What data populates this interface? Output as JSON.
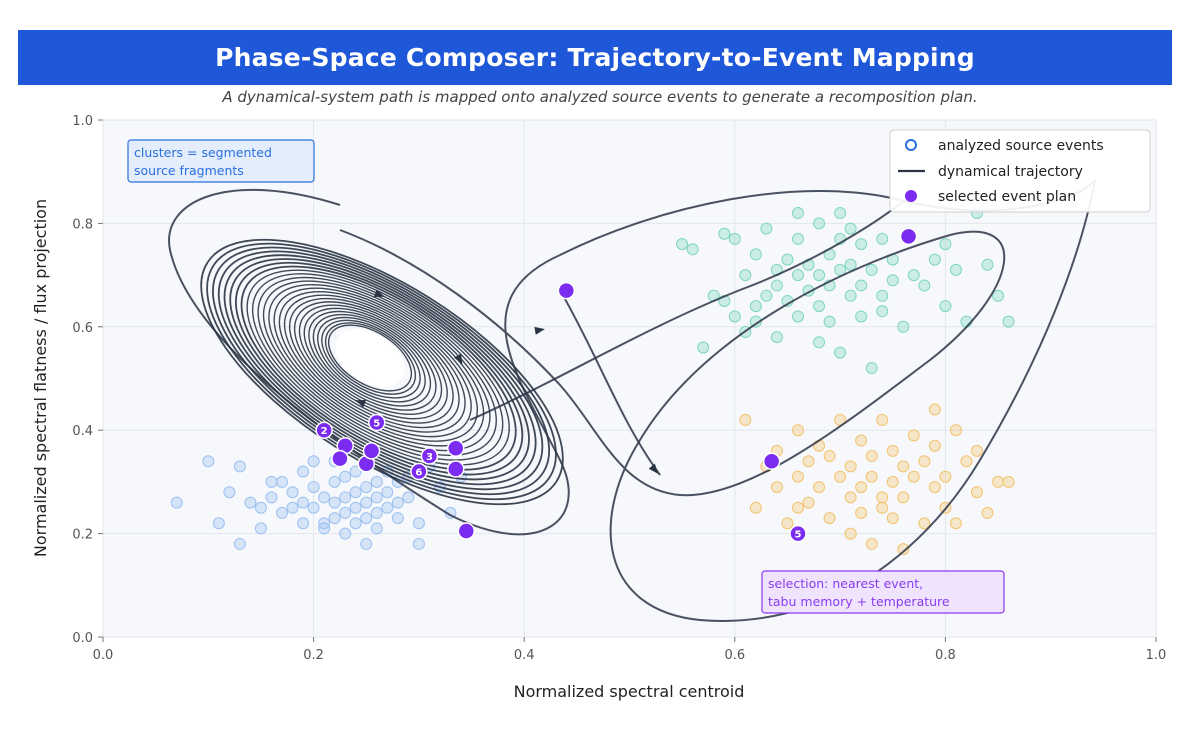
{
  "header": {
    "title": "Phase-Space Composer: Trajectory-to-Event Mapping",
    "subtitle": "A dynamical-system path is mapped onto analyzed source events to generate a recomposition plan."
  },
  "chart_data": {
    "type": "scatter",
    "xlabel": "Normalized spectral centroid",
    "ylabel": "Normalized spectral flatness / flux projection",
    "xlim": [
      0,
      1
    ],
    "ylim": [
      0,
      1
    ],
    "xticks": [
      "0.0",
      "0.2",
      "0.4",
      "0.6",
      "0.8",
      "1.0"
    ],
    "yticks": [
      "0.0",
      "0.2",
      "0.4",
      "0.6",
      "0.8",
      "1.0"
    ],
    "grid": true,
    "legend_position": "top-right",
    "legend": {
      "source": "analyzed source events",
      "trajectory": "dynamical trajectory",
      "plan": "selected event plan"
    },
    "annotations": {
      "clusters": [
        "clusters = segmented",
        "source fragments"
      ],
      "selection": [
        "selection: nearest event,",
        "tabu memory + temperature"
      ]
    },
    "colors": {
      "title_bg": "#1f57d9",
      "cluster_blue": "#9cc0f2",
      "cluster_teal": "#7fd6c0",
      "cluster_orange": "#f3c36e",
      "trajectory": "#2b3445",
      "plan": "#7b2cf0",
      "annotation_blue": "#2a6fe0",
      "annotation_purple": "#8a3cf0"
    },
    "source_events": {
      "blue": [
        [
          0.07,
          0.26
        ],
        [
          0.1,
          0.34
        ],
        [
          0.11,
          0.22
        ],
        [
          0.12,
          0.28
        ],
        [
          0.13,
          0.33
        ],
        [
          0.13,
          0.18
        ],
        [
          0.14,
          0.26
        ],
        [
          0.15,
          0.25
        ],
        [
          0.15,
          0.21
        ],
        [
          0.16,
          0.3
        ],
        [
          0.16,
          0.27
        ],
        [
          0.17,
          0.24
        ],
        [
          0.17,
          0.3
        ],
        [
          0.18,
          0.25
        ],
        [
          0.18,
          0.28
        ],
        [
          0.19,
          0.26
        ],
        [
          0.19,
          0.22
        ],
        [
          0.2,
          0.25
        ],
        [
          0.2,
          0.29
        ],
        [
          0.2,
          0.34
        ],
        [
          0.21,
          0.27
        ],
        [
          0.21,
          0.22
        ],
        [
          0.22,
          0.3
        ],
        [
          0.22,
          0.26
        ],
        [
          0.22,
          0.23
        ],
        [
          0.23,
          0.27
        ],
        [
          0.23,
          0.24
        ],
        [
          0.23,
          0.31
        ],
        [
          0.24,
          0.28
        ],
        [
          0.24,
          0.25
        ],
        [
          0.24,
          0.22
        ],
        [
          0.25,
          0.29
        ],
        [
          0.25,
          0.26
        ],
        [
          0.25,
          0.23
        ],
        [
          0.26,
          0.3
        ],
        [
          0.26,
          0.27
        ],
        [
          0.26,
          0.24
        ],
        [
          0.26,
          0.21
        ],
        [
          0.27,
          0.28
        ],
        [
          0.27,
          0.25
        ],
        [
          0.27,
          0.32
        ],
        [
          0.28,
          0.26
        ],
        [
          0.28,
          0.23
        ],
        [
          0.28,
          0.3
        ],
        [
          0.29,
          0.27
        ],
        [
          0.29,
          0.31
        ],
        [
          0.3,
          0.22
        ],
        [
          0.3,
          0.18
        ],
        [
          0.25,
          0.18
        ],
        [
          0.23,
          0.2
        ],
        [
          0.21,
          0.21
        ],
        [
          0.32,
          0.29
        ],
        [
          0.33,
          0.24
        ],
        [
          0.34,
          0.31
        ],
        [
          0.31,
          0.33
        ],
        [
          0.24,
          0.32
        ],
        [
          0.22,
          0.34
        ],
        [
          0.19,
          0.32
        ]
      ],
      "teal": [
        [
          0.55,
          0.76
        ],
        [
          0.56,
          0.75
        ],
        [
          0.57,
          0.56
        ],
        [
          0.58,
          0.66
        ],
        [
          0.59,
          0.78
        ],
        [
          0.59,
          0.65
        ],
        [
          0.6,
          0.77
        ],
        [
          0.6,
          0.62
        ],
        [
          0.61,
          0.59
        ],
        [
          0.61,
          0.7
        ],
        [
          0.62,
          0.74
        ],
        [
          0.62,
          0.64
        ],
        [
          0.62,
          0.61
        ],
        [
          0.63,
          0.79
        ],
        [
          0.63,
          0.66
        ],
        [
          0.64,
          0.71
        ],
        [
          0.64,
          0.68
        ],
        [
          0.64,
          0.58
        ],
        [
          0.65,
          0.73
        ],
        [
          0.65,
          0.65
        ],
        [
          0.66,
          0.82
        ],
        [
          0.66,
          0.77
        ],
        [
          0.66,
          0.7
        ],
        [
          0.66,
          0.62
        ],
        [
          0.67,
          0.72
        ],
        [
          0.67,
          0.67
        ],
        [
          0.68,
          0.8
        ],
        [
          0.68,
          0.7
        ],
        [
          0.68,
          0.64
        ],
        [
          0.69,
          0.74
        ],
        [
          0.69,
          0.68
        ],
        [
          0.69,
          0.61
        ],
        [
          0.7,
          0.82
        ],
        [
          0.7,
          0.77
        ],
        [
          0.7,
          0.71
        ],
        [
          0.7,
          0.55
        ],
        [
          0.71,
          0.66
        ],
        [
          0.71,
          0.72
        ],
        [
          0.72,
          0.76
        ],
        [
          0.72,
          0.68
        ],
        [
          0.72,
          0.62
        ],
        [
          0.73,
          0.71
        ],
        [
          0.73,
          0.52
        ],
        [
          0.74,
          0.77
        ],
        [
          0.74,
          0.66
        ],
        [
          0.75,
          0.73
        ],
        [
          0.75,
          0.69
        ],
        [
          0.76,
          0.6
        ],
        [
          0.77,
          0.7
        ],
        [
          0.78,
          0.68
        ],
        [
          0.79,
          0.73
        ],
        [
          0.8,
          0.76
        ],
        [
          0.8,
          0.64
        ],
        [
          0.81,
          0.71
        ],
        [
          0.82,
          0.61
        ],
        [
          0.83,
          0.82
        ],
        [
          0.84,
          0.72
        ],
        [
          0.85,
          0.66
        ],
        [
          0.86,
          0.61
        ],
        [
          0.68,
          0.57
        ],
        [
          0.71,
          0.79
        ],
        [
          0.74,
          0.63
        ]
      ],
      "orange": [
        [
          0.61,
          0.42
        ],
        [
          0.62,
          0.25
        ],
        [
          0.63,
          0.33
        ],
        [
          0.64,
          0.29
        ],
        [
          0.64,
          0.36
        ],
        [
          0.65,
          0.22
        ],
        [
          0.66,
          0.4
        ],
        [
          0.66,
          0.31
        ],
        [
          0.67,
          0.26
        ],
        [
          0.67,
          0.34
        ],
        [
          0.68,
          0.37
        ],
        [
          0.68,
          0.29
        ],
        [
          0.69,
          0.35
        ],
        [
          0.69,
          0.23
        ],
        [
          0.7,
          0.31
        ],
        [
          0.7,
          0.42
        ],
        [
          0.71,
          0.27
        ],
        [
          0.71,
          0.33
        ],
        [
          0.72,
          0.38
        ],
        [
          0.72,
          0.29
        ],
        [
          0.72,
          0.24
        ],
        [
          0.73,
          0.31
        ],
        [
          0.73,
          0.35
        ],
        [
          0.73,
          0.18
        ],
        [
          0.74,
          0.27
        ],
        [
          0.74,
          0.42
        ],
        [
          0.75,
          0.3
        ],
        [
          0.75,
          0.36
        ],
        [
          0.75,
          0.23
        ],
        [
          0.76,
          0.33
        ],
        [
          0.76,
          0.27
        ],
        [
          0.77,
          0.39
        ],
        [
          0.77,
          0.31
        ],
        [
          0.78,
          0.22
        ],
        [
          0.78,
          0.34
        ],
        [
          0.79,
          0.29
        ],
        [
          0.79,
          0.37
        ],
        [
          0.8,
          0.25
        ],
        [
          0.8,
          0.31
        ],
        [
          0.81,
          0.4
        ],
        [
          0.81,
          0.22
        ],
        [
          0.82,
          0.34
        ],
        [
          0.83,
          0.28
        ],
        [
          0.84,
          0.24
        ],
        [
          0.85,
          0.3
        ],
        [
          0.86,
          0.3
        ],
        [
          0.76,
          0.17
        ],
        [
          0.71,
          0.2
        ],
        [
          0.79,
          0.44
        ],
        [
          0.83,
          0.36
        ],
        [
          0.66,
          0.25
        ],
        [
          0.74,
          0.25
        ]
      ]
    },
    "selected_events": [
      {
        "x": 0.21,
        "y": 0.4,
        "label": "2"
      },
      {
        "x": 0.23,
        "y": 0.37,
        "label": ""
      },
      {
        "x": 0.225,
        "y": 0.345,
        "label": ""
      },
      {
        "x": 0.25,
        "y": 0.335,
        "label": ""
      },
      {
        "x": 0.255,
        "y": 0.36,
        "label": ""
      },
      {
        "x": 0.26,
        "y": 0.415,
        "label": "5"
      },
      {
        "x": 0.3,
        "y": 0.32,
        "label": "6"
      },
      {
        "x": 0.31,
        "y": 0.35,
        "label": "3"
      },
      {
        "x": 0.335,
        "y": 0.365,
        "label": ""
      },
      {
        "x": 0.335,
        "y": 0.325,
        "label": ""
      },
      {
        "x": 0.345,
        "y": 0.205,
        "label": ""
      },
      {
        "x": 0.44,
        "y": 0.67,
        "label": ""
      },
      {
        "x": 0.635,
        "y": 0.34,
        "label": ""
      },
      {
        "x": 0.66,
        "y": 0.2,
        "label": "5"
      },
      {
        "x": 0.765,
        "y": 0.775,
        "label": ""
      }
    ]
  }
}
